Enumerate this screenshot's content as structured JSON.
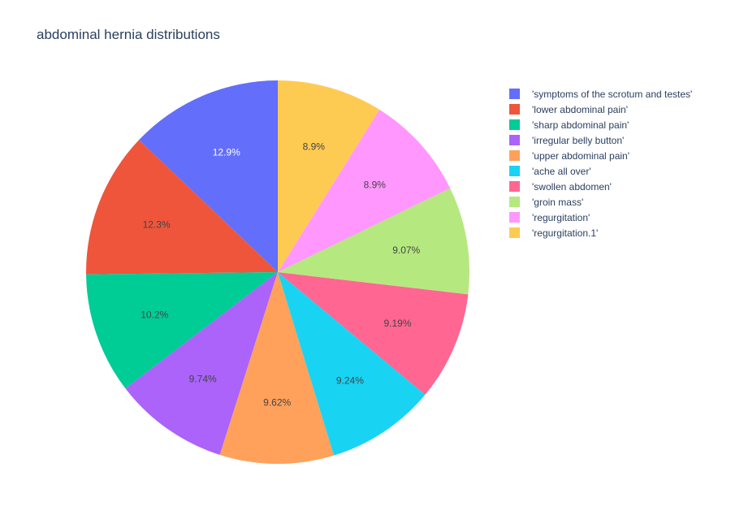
{
  "chart_data": {
    "type": "pie",
    "title": "abdominal hernia distributions",
    "labels": [
      "'symptoms of the scrotum and testes'",
      "'lower abdominal pain'",
      "'sharp abdominal pain'",
      "'irregular belly button'",
      "'upper abdominal pain'",
      "'ache all over'",
      "'swollen abdomen'",
      "'groin mass'",
      "'regurgitation'",
      "'regurgitation.1'"
    ],
    "values": [
      12.9,
      12.3,
      10.2,
      9.74,
      9.62,
      9.24,
      9.19,
      9.07,
      8.9,
      8.9
    ],
    "percent_labels": [
      "12.9%",
      "12.3%",
      "10.2%",
      "9.74%",
      "9.62%",
      "9.24%",
      "9.19%",
      "9.07%",
      "8.9%",
      "8.9%"
    ],
    "colors": [
      "#636efa",
      "#EF553B",
      "#00cc96",
      "#ab63fa",
      "#FFA15A",
      "#19d3f3",
      "#FF6692",
      "#B6E880",
      "#FF97FF",
      "#FECB52"
    ],
    "label_colors": [
      "#ffffff",
      "#444444",
      "#444444",
      "#444444",
      "#444444",
      "#444444",
      "#444444",
      "#444444",
      "#444444",
      "#444444"
    ],
    "direction": "counterclockwise",
    "start_angle": "top",
    "legend_position": "right"
  }
}
